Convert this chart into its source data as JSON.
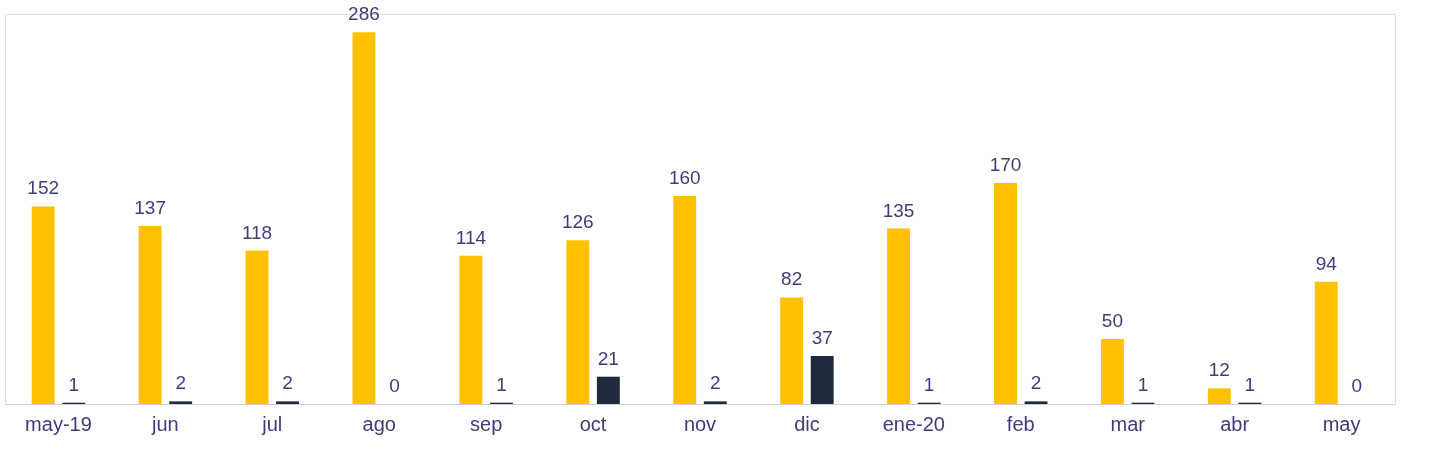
{
  "chart_data": {
    "type": "bar",
    "categories": [
      "may-19",
      "jun",
      "jul",
      "ago",
      "sep",
      "oct",
      "nov",
      "dic",
      "ene-20",
      "feb",
      "mar",
      "abr",
      "may"
    ],
    "series": [
      {
        "color": "#ffc000",
        "values": [
          152,
          137,
          118,
          286,
          114,
          126,
          160,
          82,
          135,
          170,
          50,
          12,
          94
        ]
      },
      {
        "color": "#1f2a3c",
        "values": [
          1,
          2,
          2,
          0,
          1,
          21,
          2,
          37,
          1,
          2,
          1,
          1,
          0
        ]
      }
    ],
    "data_labels": true,
    "grid": false,
    "legend": false
  }
}
